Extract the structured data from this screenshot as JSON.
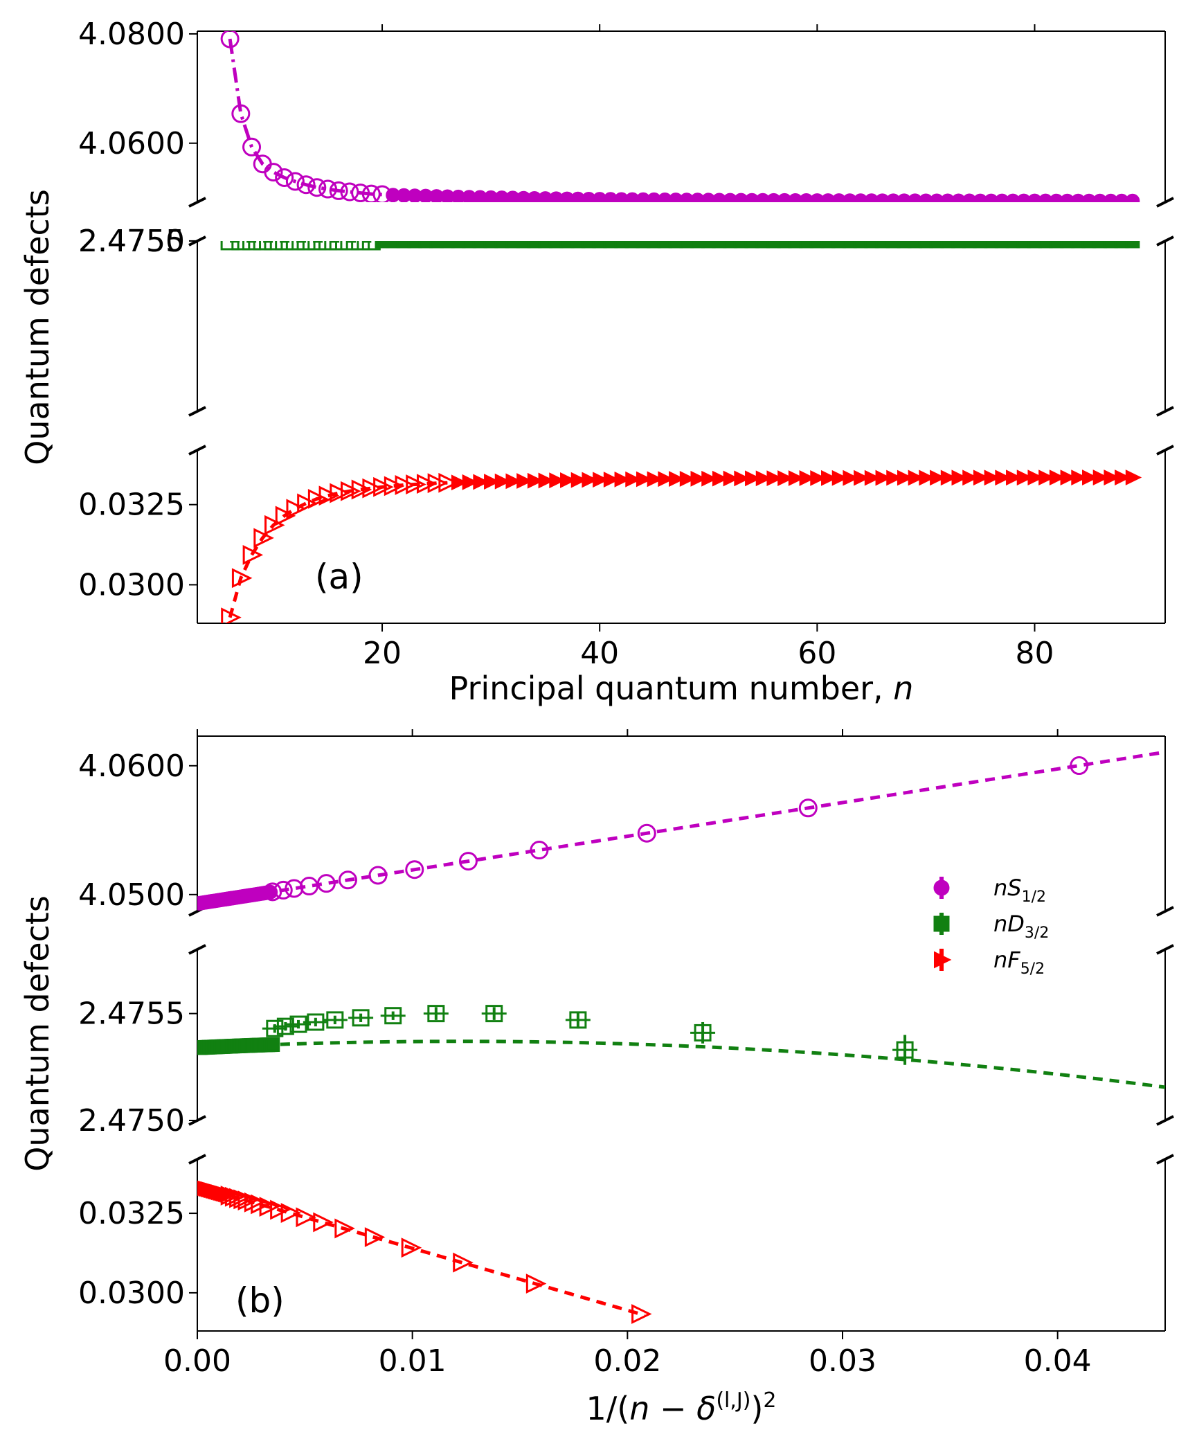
{
  "chart_data": [
    {
      "id": "a",
      "type": "scatter",
      "panel_label": "(a)",
      "xlabel_text": "Principal quantum number, ",
      "xlabel_var": "n",
      "ylabel": "Quantum defects",
      "xlim": [
        3,
        92
      ],
      "xticks": [
        20,
        40,
        60,
        80
      ],
      "xtick_labels": [
        "20",
        "40",
        "60",
        "80"
      ],
      "segments": [
        {
          "series": "nS1/2",
          "color": "#bf00bf",
          "marker": "circle",
          "line": "dashdot",
          "ylim": [
            4.0492,
            4.0805
          ],
          "yticks": [
            4.06,
            4.08
          ],
          "ytick_labels": [
            "4.0600",
            "4.0800"
          ],
          "measured": [
            [
              6,
              4.0791
            ],
            [
              7,
              4.0654
            ],
            [
              8,
              4.0593
            ],
            [
              9,
              4.0562
            ],
            [
              10,
              4.0547
            ],
            [
              11,
              4.0537
            ],
            [
              12,
              4.053
            ],
            [
              13,
              4.0524
            ],
            [
              14,
              4.0519
            ],
            [
              15,
              4.0516
            ],
            [
              16,
              4.0513
            ],
            [
              17,
              4.0511
            ],
            [
              18,
              4.0509
            ],
            [
              19,
              4.0507
            ],
            [
              20,
              4.0506
            ]
          ],
          "extrapolated": {
            "n_from": 21,
            "n_to": 89,
            "start": 4.0505,
            "limit": 4.0494,
            "k": 0.6
          }
        },
        {
          "series": "nD3/2",
          "color": "#118011",
          "marker": "square",
          "line": "dashed",
          "ylim": [
            4.7475,
            2.47575
          ],
          "yticks": [
            2.475,
            2.4755
          ],
          "ytick_labels": [
            "2.4750",
            "2.4755"
          ],
          "measured": [
            [
              6,
              2.47496,
              0.00012
            ],
            [
              7,
              2.47516,
              8e-05
            ],
            [
              8,
              2.47528,
              6e-05
            ],
            [
              9,
              2.47537,
              5e-05
            ],
            [
              10,
              2.47546,
              4e-05
            ],
            [
              11,
              2.47551,
              3e-05
            ],
            [
              12,
              2.47553,
              3e-05
            ],
            [
              13,
              2.47553,
              3e-05
            ],
            [
              14,
              2.47552,
              2e-05
            ],
            [
              15,
              2.47551,
              2e-05
            ],
            [
              16,
              2.4755,
              2e-05
            ],
            [
              17,
              2.47549,
              2e-05
            ],
            [
              18,
              2.47548,
              2e-05
            ],
            [
              19,
              2.47548,
              2e-05
            ]
          ],
          "extrapolated": {
            "n_from": 20,
            "n_to": 89,
            "start": 2.47547,
            "limit": 2.47534,
            "k": 0.8
          }
        },
        {
          "series": "nF5/2",
          "color": "#ff0000",
          "marker": "triangle-right",
          "line": "dashed",
          "ylim": [
            0.0288,
            0.0342
          ],
          "yticks": [
            0.03,
            0.0325
          ],
          "ytick_labels": [
            "0.0300",
            "0.0325"
          ],
          "measured": [
            [
              6,
              0.02898
            ],
            [
              7,
              0.03021
            ],
            [
              8,
              0.03093
            ],
            [
              9,
              0.03146
            ],
            [
              10,
              0.03186
            ],
            [
              11,
              0.03215
            ],
            [
              12,
              0.03237
            ],
            [
              13,
              0.03254
            ],
            [
              14,
              0.03268
            ],
            [
              15,
              0.03278
            ],
            [
              16,
              0.03286
            ],
            [
              17,
              0.03292
            ],
            [
              18,
              0.03297
            ],
            [
              19,
              0.03301
            ],
            [
              20,
              0.03305
            ],
            [
              21,
              0.03308
            ],
            [
              22,
              0.03311
            ],
            [
              23,
              0.03313
            ],
            [
              24,
              0.03315
            ],
            [
              25,
              0.03317
            ],
            [
              26,
              0.03318
            ]
          ],
          "extrapolated": {
            "n_from": 27,
            "n_to": 89,
            "start": 0.03319,
            "limit": 0.03335,
            "k": 0.6
          }
        }
      ]
    },
    {
      "id": "b",
      "type": "scatter",
      "panel_label": "(b)",
      "xlabel": "1/(n − δ^(l,J))^2",
      "ylabel": "Quantum defects",
      "xlim": [
        0,
        0.045
      ],
      "xticks": [
        0,
        0.01,
        0.02,
        0.03,
        0.04
      ],
      "xtick_labels": [
        "0.00",
        "0.01",
        "0.02",
        "0.03",
        "0.04"
      ],
      "segments": [
        {
          "series": "nS1/2",
          "color": "#bf00bf",
          "marker": "circle",
          "line": "dashed",
          "ylim": [
            4.0487,
            4.0623
          ],
          "yticks": [
            4.05,
            4.06
          ],
          "ytick_labels": [
            "4.0500",
            "4.0600"
          ],
          "fit": {
            "intercept": 4.0493,
            "slope": 0.2613
          },
          "measured_x": [
            0.041,
            0.0284,
            0.0209,
            0.0159,
            0.0126,
            0.0101,
            0.0084,
            0.007,
            0.006,
            0.0052,
            0.0045,
            0.004,
            0.0035
          ],
          "dense": {
            "x_from": 0.0001,
            "x_to": 0.0034,
            "count": 45
          }
        },
        {
          "series": "nD3/2",
          "color": "#118011",
          "marker": "square",
          "line": "dashed",
          "ylim": [
            2.475,
            2.4758
          ],
          "yticks": [
            2.475,
            2.4755
          ],
          "ytick_labels": [
            "2.4750",
            "2.4755"
          ],
          "fit": {
            "type": "quadratic",
            "a": 2.47534,
            "b": 0.0049,
            "c": -0.2
          },
          "measured": [
            [
              0.0329,
              2.47533,
              7e-05
            ],
            [
              0.0235,
              2.47541,
              5e-05
            ],
            [
              0.0177,
              2.47547,
              4e-05
            ],
            [
              0.0138,
              2.4755,
              3e-05
            ],
            [
              0.0111,
              2.4755,
              3e-05
            ],
            [
              0.0091,
              2.47549,
              2e-05
            ],
            [
              0.0076,
              2.47548,
              2e-05
            ],
            [
              0.0064,
              2.47547,
              2e-05
            ],
            [
              0.0055,
              2.47546,
              2e-05
            ],
            [
              0.0047,
              2.47545,
              2e-05
            ],
            [
              0.0041,
              2.47544,
              2e-05
            ],
            [
              0.0036,
              2.47543,
              2e-05
            ]
          ],
          "dense": {
            "x_from": 0.0001,
            "x_to": 0.0035,
            "count": 45
          }
        },
        {
          "series": "nF5/2",
          "color": "#ff0000",
          "marker": "triangle-right",
          "line": "dashed",
          "ylim": [
            0.0288,
            0.0342
          ],
          "yticks": [
            0.03,
            0.0325
          ],
          "ytick_labels": [
            "0.0300",
            "0.0325"
          ],
          "fit": {
            "intercept": 0.03335,
            "slope": -0.195
          },
          "measured_x": [
            0.0206,
            0.0157,
            0.0123,
            0.0099,
            0.0082,
            0.0068,
            0.0058,
            0.005,
            0.0043,
            0.0038,
            0.0033,
            0.0029,
            0.0026,
            0.0023,
            0.0021,
            0.0019,
            0.0017,
            0.0015
          ],
          "dense": {
            "x_from": 0.0001,
            "x_to": 0.0014,
            "count": 25
          }
        }
      ],
      "legend": {
        "position": "center-right",
        "entries": [
          {
            "label": "nS",
            "sub": "1/2",
            "color": "#bf00bf",
            "marker": "circle"
          },
          {
            "label": "nD",
            "sub": "3/2",
            "color": "#118011",
            "marker": "square"
          },
          {
            "label": "nF",
            "sub": "5/2",
            "color": "#ff0000",
            "marker": "triangle-right"
          }
        ]
      }
    }
  ]
}
